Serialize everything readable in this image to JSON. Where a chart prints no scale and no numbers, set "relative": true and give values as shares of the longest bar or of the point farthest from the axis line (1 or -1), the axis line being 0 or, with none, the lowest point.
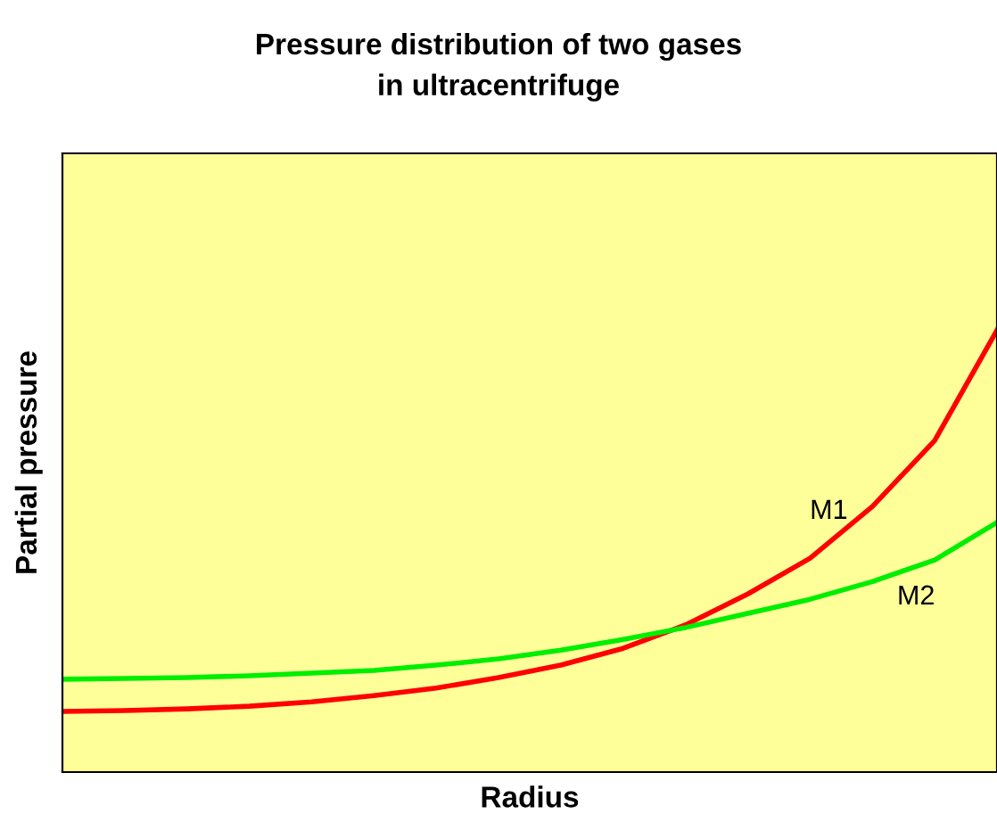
{
  "chart_data": {
    "type": "line",
    "title": "Pressure distribution of two gases\nin ultracentrifuge",
    "xlabel": "Radius",
    "ylabel": "Partial pressure",
    "relative": true,
    "grid": false,
    "legend": false,
    "categories": [
      null,
      null,
      null,
      null,
      null,
      null,
      null,
      null,
      null,
      null,
      null,
      null,
      null,
      null,
      null,
      null
    ],
    "series": [
      {
        "name": "M1",
        "color": "#ff0000",
        "values": [
          0.137,
          0.139,
          0.143,
          0.149,
          0.159,
          0.173,
          0.19,
          0.214,
          0.242,
          0.28,
          0.333,
          0.403,
          0.484,
          0.601,
          0.75,
          1.0
        ]
      },
      {
        "name": "M2",
        "color": "#00ee00",
        "values": [
          0.21,
          0.212,
          0.214,
          0.218,
          0.224,
          0.23,
          0.242,
          0.256,
          0.276,
          0.3,
          0.327,
          0.359,
          0.391,
          0.431,
          0.48,
          0.565
        ]
      }
    ]
  }
}
